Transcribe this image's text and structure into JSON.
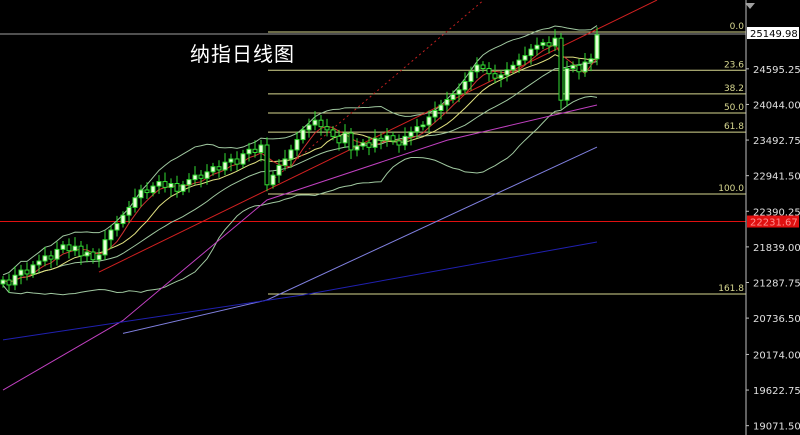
{
  "chart_data": {
    "type": "candlestick",
    "title": "纳指日线图",
    "ylim": [
      19000,
      25700
    ],
    "y_ticks": [
      "25149.98",
      "24595.25",
      "24044.00",
      "23492.75",
      "22941.50",
      "22390.25",
      "21839.00",
      "21287.75",
      "20736.50",
      "20174.00",
      "19622.75",
      "19071.50"
    ],
    "current_price_label": "25149.98",
    "marked_price": {
      "label": "22231.67",
      "value": 22231.67,
      "color": "#e01010"
    },
    "closes": [
      21326,
      21250,
      21400,
      21480,
      21420,
      21560,
      21620,
      21700,
      21650,
      21800,
      21870,
      21780,
      21850,
      21700,
      21760,
      21640,
      21715,
      21950,
      22100,
      22200,
      22330,
      22450,
      22600,
      22720,
      22680,
      22780,
      22850,
      22760,
      22820,
      22700,
      22800,
      22880,
      22950,
      22900,
      23000,
      23080,
      23030,
      23150,
      23200,
      23120,
      23280,
      23350,
      23300,
      23416,
      22800,
      22950,
      23100,
      23200,
      23340,
      23500,
      23650,
      23725,
      23800,
      23700,
      23650,
      23550,
      23450,
      23600,
      23340,
      23400,
      23450,
      23380,
      23520,
      23490,
      23560,
      23480,
      23416,
      23550,
      23620,
      23700,
      23725,
      23850,
      23950,
      24035,
      24120,
      24200,
      24270,
      24400,
      24550,
      24655,
      24600,
      24520,
      24450,
      24500,
      24580,
      24650,
      24730,
      24800,
      24900,
      24960,
      25000,
      24950,
      25070,
      24110,
      24600,
      24650,
      24550,
      24700,
      24750,
      25120
    ],
    "fibonacci": {
      "color": "#d8d890",
      "levels": [
        {
          "label": "0.0",
          "value": 25165
        },
        {
          "label": "23.6",
          "value": 24573
        },
        {
          "label": "38.2",
          "value": 24207
        },
        {
          "label": "50.0",
          "value": 23911
        },
        {
          "label": "61.8",
          "value": 23616
        },
        {
          "label": "100.0",
          "value": 22658
        },
        {
          "label": "161.8",
          "value": 21109
        }
      ]
    },
    "lines": [
      {
        "kind": "trendline",
        "color": "#d02020",
        "style": "solid",
        "points": [
          [
            16,
            21450
          ],
          [
            109,
            25660
          ]
        ]
      },
      {
        "kind": "trendline",
        "color": "#c02020",
        "style": "dotted",
        "points": [
          [
            44,
            22800
          ],
          [
            80,
            25650
          ]
        ]
      },
      {
        "kind": "ma",
        "color": "#c040c0",
        "points": [
          [
            0,
            19623
          ],
          [
            20,
            20700
          ],
          [
            44,
            22565
          ],
          [
            74,
            23490
          ],
          [
            99,
            24035
          ]
        ]
      },
      {
        "kind": "ma",
        "color": "#8080e0",
        "points": [
          [
            20,
            20500
          ],
          [
            44,
            21017
          ],
          [
            99,
            23385
          ]
        ]
      },
      {
        "kind": "ma",
        "color": "#2020b0",
        "points": [
          [
            0,
            20400
          ],
          [
            50,
            21095
          ],
          [
            99,
            21915
          ]
        ]
      }
    ],
    "colors": {
      "up": "#e8ffd8",
      "down": "#33dd33",
      "wick": "#33dd33",
      "ma_fast": "#d03030",
      "ma_slow": "#e0e080",
      "bollinger": "#a0c8a0",
      "grid": "#c0c0c0"
    }
  }
}
